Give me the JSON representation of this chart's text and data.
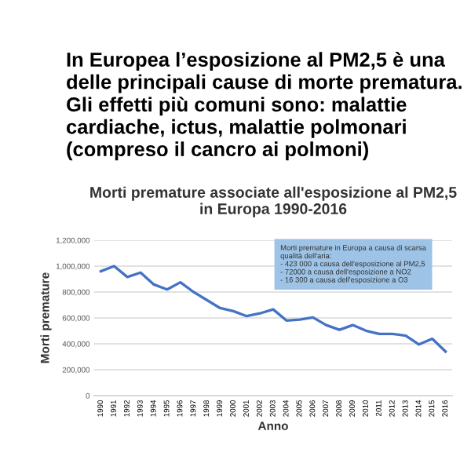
{
  "chart_data": {
    "type": "line",
    "title": "Morti premature associate all'esposizione al PM2,5\nin Europa 1990-2016",
    "xlabel": "Anno",
    "ylabel": "Morti premature",
    "categories": [
      "1990",
      "1991",
      "1992",
      "1993",
      "1994",
      "1995",
      "1996",
      "1997",
      "1998",
      "1999",
      "2000",
      "2001",
      "2002",
      "2003",
      "2004",
      "2005",
      "2006",
      "2007",
      "2008",
      "2009",
      "2010",
      "2011",
      "2012",
      "2013",
      "2014",
      "2015",
      "2016"
    ],
    "series": [
      {
        "color": "#4472c4",
        "values": [
          960000,
          1000000,
          916000,
          950000,
          858000,
          820000,
          875000,
          800000,
          738000,
          676000,
          652000,
          614000,
          635000,
          666000,
          580000,
          587000,
          604000,
          545000,
          508000,
          545000,
          501000,
          477000,
          477000,
          463000,
          395000,
          439000,
          340000
        ]
      }
    ],
    "ylim": [
      0,
      1200000
    ],
    "yticks": [
      {
        "value": 0,
        "label": "0"
      },
      {
        "value": 200000,
        "label": "200,000"
      },
      {
        "value": 400000,
        "label": "400,000"
      },
      {
        "value": 600000,
        "label": "600,000"
      },
      {
        "value": 800000,
        "label": "800,000"
      },
      {
        "value": 1000000,
        "label": "1,000,000"
      },
      {
        "value": 1200000,
        "label": "1,200,000"
      }
    ],
    "grid": "y",
    "marker": "none",
    "line_style": "solid",
    "annotations": [
      "In Europea l’esposizione al PM2,5 è una delle principali cause di morte prematura. Gli effetti più comuni sono: malattie cardiache, ictus, malattie polmonari (compreso il cancro ai polmoni)",
      "Morti premature in Europa a causa di scarsa\nqualità dell'aria:\n- 423 000 a causa dell'esposizione al PM2,5\n- 72000 a causa dell'esposizione a NO2\n- 16 300 a causa dell'esposizione a O3"
    ]
  }
}
